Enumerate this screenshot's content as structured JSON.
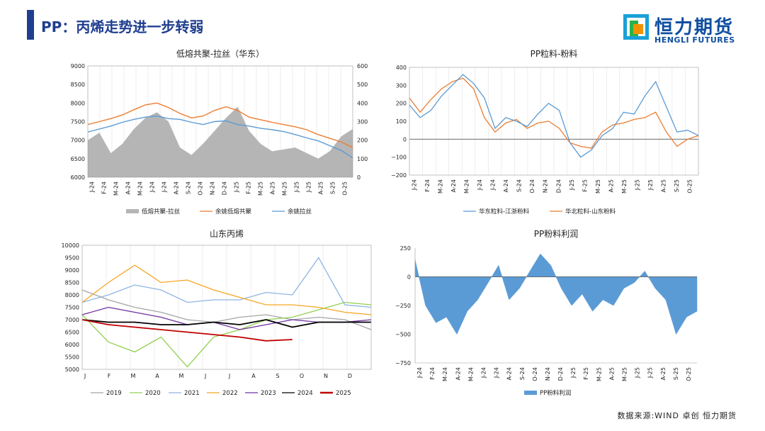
{
  "header": {
    "title": "PP：丙烯走势进一步转弱",
    "logo_cn": "恒力期货",
    "logo_en": "HENGLI FUTURES"
  },
  "footer": {
    "source": "数据来源:WIND 卓创 恒力期货"
  },
  "colors": {
    "accent": "#1f3e8f",
    "gray_area": "#b5b5b5",
    "orange": "#ed7d31",
    "blue": "#5b9bd5"
  },
  "chart_data": [
    {
      "type": "line",
      "title": "低熔共聚-拉丝（华东）",
      "x_ticks": [
        "J-24",
        "F-24",
        "M-24",
        "A-24",
        "M-24",
        "J-24",
        "J-24",
        "A-24",
        "S-24",
        "O-24",
        "N-24",
        "D-24",
        "J-25",
        "F-25",
        "M-25",
        "A-25",
        "M-25",
        "J-25",
        "J-25",
        "A-25",
        "S-25",
        "O-25"
      ],
      "ylim_left": [
        6000,
        9000
      ],
      "yticks_left": [
        "9000",
        "8500",
        "8000",
        "7500",
        "7000",
        "6500",
        "6000"
      ],
      "ylim_right": [
        0,
        600
      ],
      "yticks_right": [
        "600",
        "500",
        "400",
        "300",
        "200",
        "100",
        "0"
      ],
      "legend": [
        "低熔共聚-拉丝",
        "余姚低熔共聚",
        "余姚拉丝"
      ],
      "series": [
        {
          "name": "低熔共聚-拉丝",
          "axis": "right",
          "kind": "area",
          "values": [
            200,
            240,
            130,
            180,
            260,
            320,
            350,
            300,
            160,
            120,
            180,
            250,
            320,
            380,
            250,
            180,
            140,
            150,
            160,
            130,
            100,
            140,
            220,
            260
          ]
        },
        {
          "name": "余姚低熔共聚",
          "axis": "left",
          "values": [
            7420,
            7500,
            7580,
            7680,
            7820,
            7950,
            8000,
            7880,
            7720,
            7600,
            7650,
            7800,
            7900,
            7800,
            7620,
            7550,
            7480,
            7420,
            7360,
            7280,
            7150,
            7050,
            6950,
            6800
          ]
        },
        {
          "name": "余姚拉丝",
          "axis": "left",
          "values": [
            7220,
            7300,
            7380,
            7480,
            7560,
            7620,
            7650,
            7580,
            7560,
            7480,
            7420,
            7500,
            7520,
            7420,
            7380,
            7320,
            7280,
            7230,
            7150,
            7060,
            6980,
            6850,
            6720,
            6520
          ]
        }
      ]
    },
    {
      "type": "line",
      "title": "PP粒料-粉料",
      "x_ticks": [
        "J-24",
        "F-24",
        "M-24",
        "A-24",
        "M-24",
        "J-24",
        "J-24",
        "A-24",
        "S-24",
        "O-24",
        "N-24",
        "D-24",
        "J-25",
        "F-25",
        "M-25",
        "A-25",
        "M-25",
        "J-25",
        "J-25",
        "A-25",
        "S-25",
        "O-25"
      ],
      "ylim": [
        -200,
        400
      ],
      "yticks": [
        "400",
        "300",
        "200",
        "100",
        "0",
        "−100",
        "−200"
      ],
      "legend": [
        "华东粒料-江浙粉料",
        "华北粒料-山东粉料"
      ],
      "series": [
        {
          "name": "华东粒料-江浙粉料",
          "values": [
            190,
            120,
            160,
            240,
            300,
            360,
            310,
            230,
            60,
            120,
            100,
            70,
            140,
            200,
            160,
            -20,
            -100,
            -60,
            20,
            60,
            150,
            140,
            240,
            320,
            180,
            40,
            50,
            20
          ]
        },
        {
          "name": "华北粒料-山东粉料",
          "values": [
            230,
            150,
            220,
            280,
            320,
            340,
            280,
            120,
            40,
            90,
            110,
            60,
            90,
            100,
            60,
            -20,
            -40,
            -50,
            40,
            80,
            90,
            110,
            120,
            150,
            40,
            -40,
            0,
            20
          ]
        }
      ]
    },
    {
      "type": "line",
      "title": "山东丙烯",
      "x_ticks": [
        "J",
        "F",
        "M",
        "A",
        "M",
        "J",
        "J",
        "A",
        "S",
        "O",
        "N",
        "D"
      ],
      "ylim": [
        5000,
        10000
      ],
      "yticks": [
        "10000",
        "9500",
        "9000",
        "8500",
        "8000",
        "7500",
        "7000",
        "6500",
        "6000",
        "5500",
        "5000"
      ],
      "legend": [
        "2019",
        "2020",
        "2021",
        "2022",
        "2023",
        "2024",
        "2025"
      ],
      "series": [
        {
          "name": "2019",
          "values": [
            8200,
            7800,
            7500,
            7300,
            7000,
            6900,
            7100,
            7200,
            7000,
            7100,
            7000,
            6600
          ]
        },
        {
          "name": "2020",
          "values": [
            7200,
            6100,
            5700,
            6300,
            5100,
            6300,
            6600,
            7000,
            7100,
            7400,
            7700,
            7600
          ]
        },
        {
          "name": "2021",
          "values": [
            7700,
            8000,
            8400,
            8200,
            7700,
            7800,
            7800,
            8100,
            8000,
            9500,
            7600,
            7500
          ]
        },
        {
          "name": "2022",
          "values": [
            7700,
            8500,
            9200,
            8500,
            8600,
            8200,
            7900,
            7600,
            7600,
            7500,
            7300,
            7200
          ]
        },
        {
          "name": "2023",
          "values": [
            7200,
            7500,
            7300,
            7100,
            6800,
            6900,
            6600,
            6800,
            7000,
            6900,
            6900,
            7000
          ]
        },
        {
          "name": "2024",
          "values": [
            7000,
            6900,
            6900,
            6800,
            6800,
            6900,
            6800,
            7000,
            6700,
            6900,
            6900,
            6900
          ]
        },
        {
          "name": "2025",
          "values": [
            7000,
            6800,
            6700,
            6600,
            6500,
            6400,
            6300,
            6150,
            6200,
            null,
            null,
            null
          ]
        }
      ]
    },
    {
      "type": "area",
      "title": "PP粉料利润",
      "x_ticks": [
        "J-24",
        "F-24",
        "M-24",
        "A-24",
        "M-24",
        "J-24",
        "J-24",
        "A-24",
        "S-24",
        "O-24",
        "N-24",
        "D-24",
        "J-25",
        "F-25",
        "M-25",
        "A-25",
        "M-25",
        "J-25",
        "J-25",
        "A-25",
        "S-25",
        "O-25"
      ],
      "ylim": [
        -750,
        250
      ],
      "yticks": [
        "250",
        "0",
        "−250",
        "−500",
        "−750"
      ],
      "legend": [
        "PP粉料利润"
      ],
      "series": [
        {
          "name": "PP粉料利润",
          "values": [
            150,
            -250,
            -400,
            -350,
            -500,
            -300,
            -200,
            -50,
            100,
            -200,
            -100,
            50,
            200,
            100,
            -100,
            -250,
            -150,
            -300,
            -200,
            -250,
            -100,
            -50,
            50,
            -100,
            -200,
            -500,
            -350,
            -300
          ]
        }
      ]
    }
  ]
}
